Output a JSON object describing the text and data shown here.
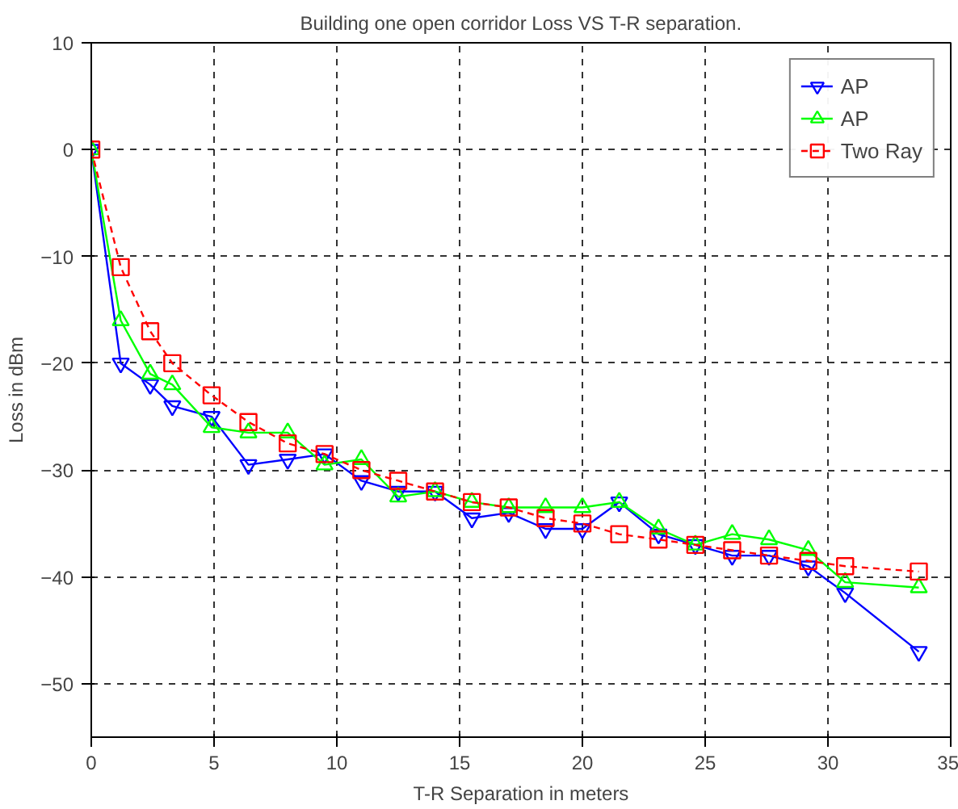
{
  "chart_data": {
    "type": "line",
    "title": "Building one open corridor Loss VS T-R separation.",
    "xlabel": "T-R Separation in meters",
    "ylabel": "Loss in dBm",
    "x": [
      0,
      1.2,
      2.4,
      3.3,
      4.9,
      6.4,
      8.0,
      9.5,
      11.0,
      12.5,
      14.0,
      15.5,
      17.0,
      18.5,
      20.0,
      21.5,
      23.1,
      24.6,
      26.1,
      27.6,
      29.2,
      30.7,
      33.7
    ],
    "series": [
      {
        "name": "AP",
        "color": "#0000ff",
        "marker": "triangle",
        "line_style": "solid",
        "values": [
          0,
          -20,
          -22,
          -24,
          -25,
          -29.5,
          -29,
          -28.5,
          -31,
          -32,
          -32,
          -34.5,
          -34,
          -35.5,
          -35.5,
          -33,
          -36,
          -37,
          -38,
          -38,
          -39,
          -41.5,
          -47
        ]
      },
      {
        "name": "AP",
        "color": "#00ff00",
        "marker": "triangle",
        "line_style": "solid",
        "values": [
          0,
          -16,
          -21,
          -22,
          -26,
          -26.5,
          -26.5,
          -29.5,
          -29,
          -32.5,
          -32,
          -33,
          -33.5,
          -33.5,
          -33.5,
          -33,
          -35.5,
          -37,
          -36,
          -36.5,
          -37.5,
          -40.5,
          -41
        ]
      },
      {
        "name": "Two Ray",
        "color": "#ff0000",
        "marker": "square",
        "line_style": "dashed",
        "values": [
          0,
          -11,
          -17,
          -20,
          -23,
          -25.5,
          -27.5,
          -28.5,
          -30,
          -31,
          -32,
          -33,
          -33.5,
          -34.5,
          -35,
          -36,
          -36.5,
          -37,
          -37.5,
          -38,
          -38.5,
          -39,
          -39.5
        ]
      }
    ],
    "xlim": [
      0,
      35
    ],
    "xticks": [
      0,
      5,
      10,
      15,
      20,
      25,
      30,
      35
    ],
    "ylim": [
      -55,
      10
    ],
    "yticks": [
      -50,
      -40,
      -30,
      -20,
      -10,
      0,
      10
    ],
    "grid": true,
    "legend": "top right"
  }
}
